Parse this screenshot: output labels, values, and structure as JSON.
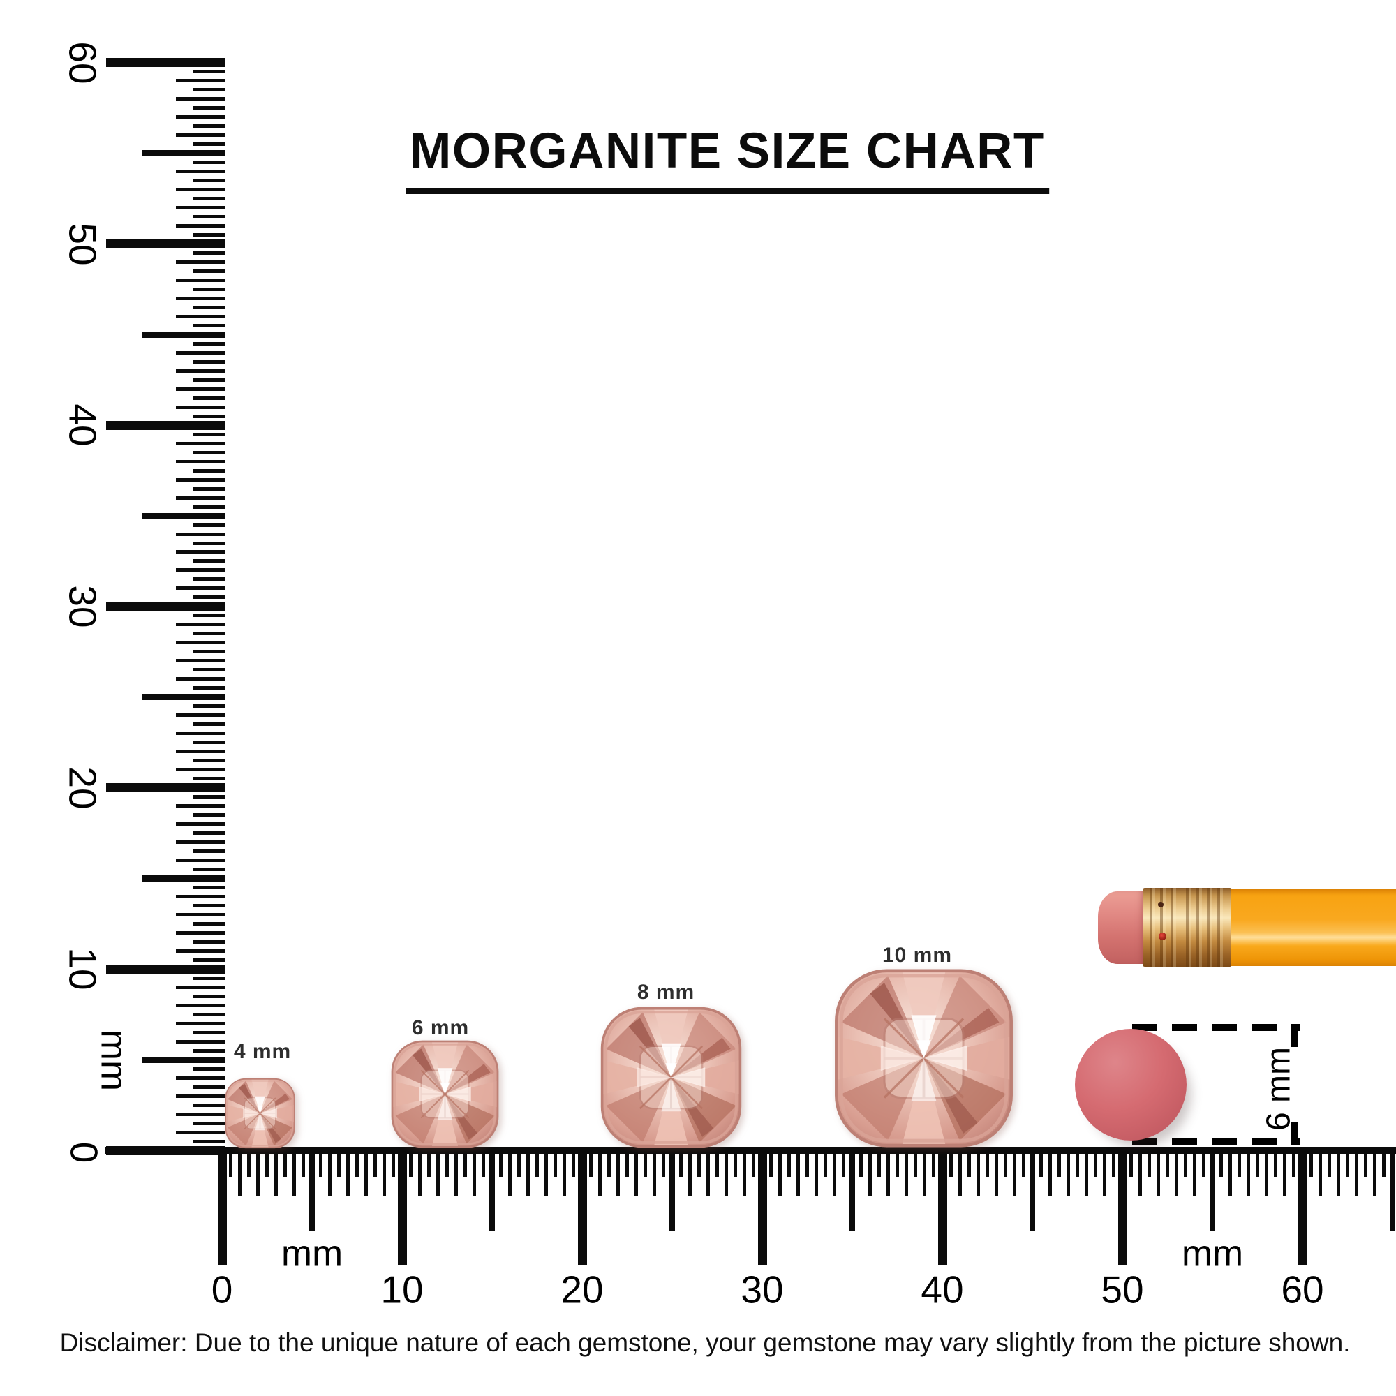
{
  "title": "MORGANITE SIZE CHART",
  "gems": [
    {
      "label": "4 mm",
      "size_mm": 4
    },
    {
      "label": "6 mm",
      "size_mm": 6
    },
    {
      "label": "8 mm",
      "size_mm": 8
    },
    {
      "label": "10 mm",
      "size_mm": 10
    }
  ],
  "rulers": {
    "left": {
      "major_labels": [
        "60",
        "50",
        "40",
        "30",
        "20",
        "10"
      ],
      "zero_label": "0",
      "unit_label": "mm"
    },
    "bottom": {
      "major_labels": [
        "0",
        "10",
        "20",
        "30",
        "40",
        "50",
        "60"
      ],
      "unit_labels": [
        "mm",
        "mm"
      ]
    }
  },
  "pencil_eraser_dimension": "6 mm",
  "disclaimer": "Disclaimer: Due to the unique nature of each gemstone, your gemstone may vary slightly from the picture shown.",
  "colors": {
    "morganite_light": "#f6ddd3",
    "morganite_mid": "#dfab9f",
    "morganite_dark": "#b5756a",
    "pencil_orange": "#f9a41a",
    "ferrule_gold": "#ecc88d",
    "eraser_pink": "#d4696f",
    "ink": "#0e0e0e"
  }
}
